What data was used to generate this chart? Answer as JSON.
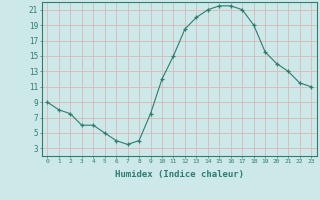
{
  "x": [
    0,
    1,
    2,
    3,
    4,
    5,
    6,
    7,
    8,
    9,
    10,
    11,
    12,
    13,
    14,
    15,
    16,
    17,
    18,
    19,
    20,
    21,
    22,
    23
  ],
  "y": [
    9,
    8,
    7.5,
    6,
    6,
    5,
    4,
    3.5,
    4,
    7.5,
    12,
    15,
    18.5,
    20,
    21,
    21.5,
    21.5,
    21,
    19,
    15.5,
    14,
    13,
    11.5,
    11
  ],
  "xlabel": "Humidex (Indice chaleur)",
  "ylabel": "",
  "xlim": [
    -0.5,
    23.5
  ],
  "ylim": [
    2,
    22
  ],
  "yticks": [
    3,
    5,
    7,
    9,
    11,
    13,
    15,
    17,
    19,
    21
  ],
  "xticks": [
    0,
    1,
    2,
    3,
    4,
    5,
    6,
    7,
    8,
    9,
    10,
    11,
    12,
    13,
    14,
    15,
    16,
    17,
    18,
    19,
    20,
    21,
    22,
    23
  ],
  "line_color": "#2e7d6e",
  "marker": "+",
  "bg_color": "#cce8e8",
  "grid_color": "#d8b8b8",
  "axis_color": "#2e7d6e",
  "tick_color": "#2e7d6e",
  "label_color": "#2e7d6e"
}
